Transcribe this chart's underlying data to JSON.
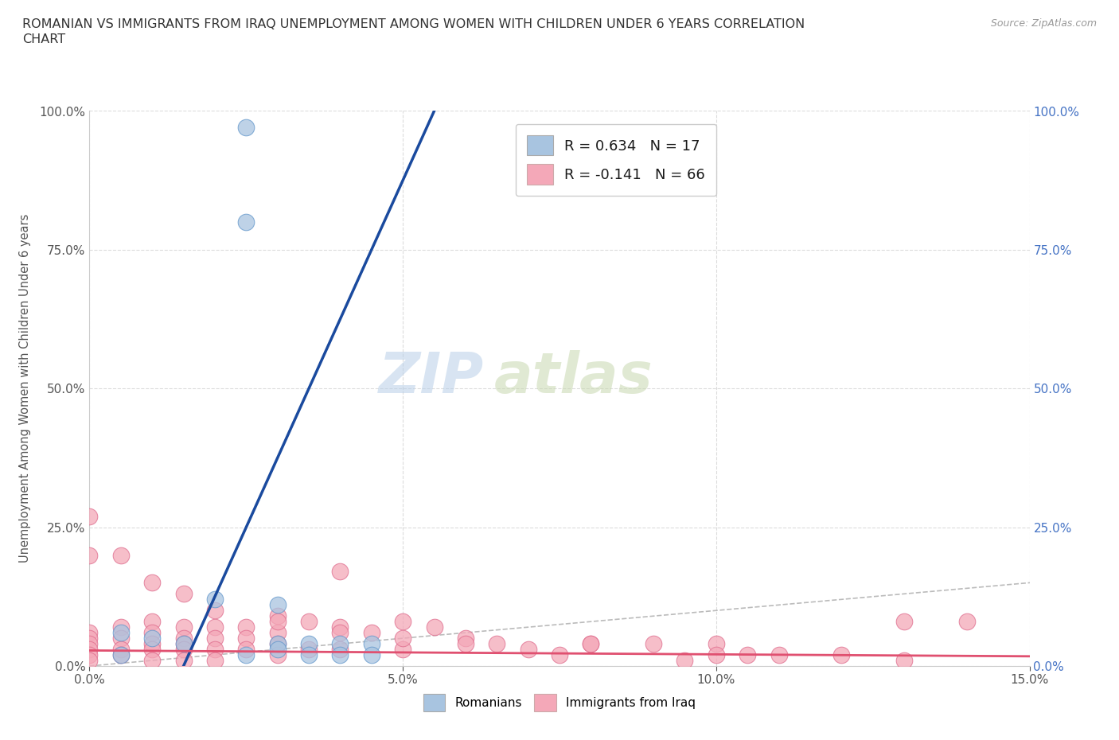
{
  "title_line1": "ROMANIAN VS IMMIGRANTS FROM IRAQ UNEMPLOYMENT AMONG WOMEN WITH CHILDREN UNDER 6 YEARS CORRELATION",
  "title_line2": "CHART",
  "source": "Source: ZipAtlas.com",
  "ylabel": "Unemployment Among Women with Children Under 6 years",
  "xlim": [
    0.0,
    0.15
  ],
  "ylim": [
    0.0,
    1.0
  ],
  "xticks": [
    0.0,
    0.05,
    0.1,
    0.15
  ],
  "yticks": [
    0.0,
    0.25,
    0.5,
    0.75,
    1.0
  ],
  "xticklabels": [
    "0.0%",
    "5.0%",
    "10.0%",
    "15.0%"
  ],
  "yticklabels_left": [
    "0.0%",
    "25.0%",
    "50.0%",
    "75.0%",
    "100.0%"
  ],
  "yticklabels_right": [
    "0.0%",
    "25.0%",
    "50.0%",
    "75.0%",
    "100.0%"
  ],
  "romanian_color": "#a8c4e0",
  "romanian_edge": "#6699cc",
  "iraq_color": "#f4a8b8",
  "iraq_edge": "#e07090",
  "romanian_R": 0.634,
  "romanian_N": 17,
  "iraq_R": -0.141,
  "iraq_N": 66,
  "watermark_zip": "ZIP",
  "watermark_atlas": "atlas",
  "legend_romanians": "Romanians",
  "legend_iraq": "Immigrants from Iraq",
  "romanian_scatter_x": [
    0.025,
    0.025,
    0.005,
    0.005,
    0.01,
    0.015,
    0.02,
    0.03,
    0.03,
    0.035,
    0.04,
    0.045,
    0.035,
    0.04,
    0.045,
    0.025,
    0.03
  ],
  "romanian_scatter_y": [
    0.97,
    0.8,
    0.02,
    0.06,
    0.05,
    0.04,
    0.12,
    0.11,
    0.04,
    0.04,
    0.04,
    0.04,
    0.02,
    0.02,
    0.02,
    0.02,
    0.03
  ],
  "iraq_scatter_x": [
    0.0,
    0.0,
    0.0,
    0.0,
    0.0,
    0.0,
    0.005,
    0.005,
    0.005,
    0.005,
    0.01,
    0.01,
    0.01,
    0.01,
    0.01,
    0.015,
    0.015,
    0.015,
    0.015,
    0.015,
    0.02,
    0.02,
    0.02,
    0.02,
    0.025,
    0.025,
    0.025,
    0.03,
    0.03,
    0.03,
    0.03,
    0.035,
    0.035,
    0.04,
    0.04,
    0.04,
    0.045,
    0.05,
    0.05,
    0.055,
    0.06,
    0.065,
    0.07,
    0.075,
    0.08,
    0.09,
    0.095,
    0.1,
    0.1,
    0.105,
    0.11,
    0.12,
    0.13,
    0.14,
    0.0,
    0.0,
    0.005,
    0.01,
    0.015,
    0.02,
    0.03,
    0.04,
    0.05,
    0.06,
    0.08,
    0.13
  ],
  "iraq_scatter_y": [
    0.06,
    0.05,
    0.04,
    0.03,
    0.02,
    0.01,
    0.07,
    0.05,
    0.03,
    0.02,
    0.08,
    0.06,
    0.04,
    0.03,
    0.01,
    0.07,
    0.05,
    0.04,
    0.03,
    0.01,
    0.07,
    0.05,
    0.03,
    0.01,
    0.07,
    0.05,
    0.03,
    0.09,
    0.06,
    0.04,
    0.02,
    0.08,
    0.03,
    0.17,
    0.07,
    0.03,
    0.06,
    0.08,
    0.03,
    0.07,
    0.05,
    0.04,
    0.03,
    0.02,
    0.04,
    0.04,
    0.01,
    0.04,
    0.02,
    0.02,
    0.02,
    0.02,
    0.01,
    0.08,
    0.2,
    0.27,
    0.2,
    0.15,
    0.13,
    0.1,
    0.08,
    0.06,
    0.05,
    0.04,
    0.04,
    0.08
  ],
  "background_color": "#ffffff",
  "grid_color": "#cccccc",
  "title_color": "#333333",
  "axis_label_color": "#555555",
  "left_tick_color": "#555555",
  "right_tick_color": "#4472c4",
  "trendline_romanian_color": "#1a4a9e",
  "trendline_iraq_color": "#e05070",
  "diagonal_color": "#aaaaaa",
  "legend_border_color": "#cccccc"
}
